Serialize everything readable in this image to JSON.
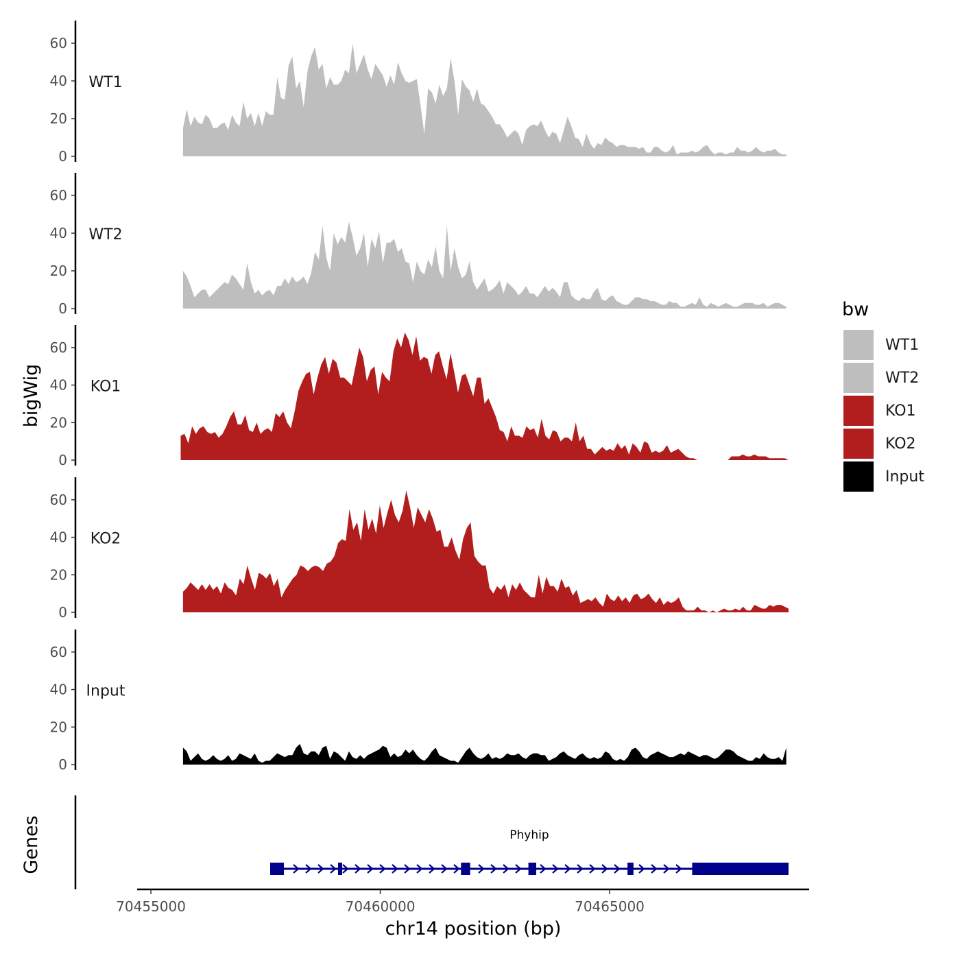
{
  "chart_data": {
    "type": "area",
    "ylabel": "bigWig",
    "xlabel": "chr14 position (bp)",
    "xlim": [
      70454700,
      70469350
    ],
    "x_ticks": [
      70455000,
      70460000,
      70465000
    ],
    "x_tick_labels": [
      "70455000",
      "70460000",
      "70465000"
    ],
    "ylim": [
      0,
      72
    ],
    "y_ticks": [
      0,
      20,
      40,
      60
    ],
    "y_tick_labels": [
      "0",
      "20",
      "40",
      "60"
    ],
    "legend": {
      "title": "bw",
      "entries": [
        {
          "label": "WT1",
          "color": "#bebebe"
        },
        {
          "label": "WT2",
          "color": "#bebebe"
        },
        {
          "label": "KO1",
          "color": "#b21e1e"
        },
        {
          "label": "KO2",
          "color": "#b21e1e"
        },
        {
          "label": "Input",
          "color": "#000000"
        }
      ]
    },
    "series": [
      {
        "name": "WT1",
        "color": "#bebebe",
        "x_start": 70455700,
        "x_end": 70468850,
        "values": [
          15,
          25,
          16,
          21,
          18,
          17,
          22,
          20,
          15,
          15,
          17,
          18,
          14,
          22,
          18,
          16,
          29,
          20,
          23,
          16,
          23,
          16,
          24,
          22,
          22,
          42,
          31,
          30,
          48,
          53,
          36,
          40,
          26,
          45,
          53,
          58,
          46,
          49,
          36,
          42,
          38,
          38,
          40,
          46,
          44,
          60,
          44,
          49,
          54,
          46,
          41,
          49,
          46,
          43,
          37,
          43,
          38,
          50,
          44,
          40,
          39,
          40,
          41,
          27,
          12,
          36,
          34,
          28,
          38,
          32,
          36,
          52,
          40,
          22,
          41,
          37,
          35,
          29,
          36,
          28,
          27,
          24,
          21,
          17,
          17,
          14,
          10,
          12,
          14,
          12,
          6,
          14,
          16,
          17,
          16,
          19,
          14,
          10,
          13,
          12,
          7,
          14,
          21,
          16,
          10,
          9,
          5,
          12,
          7,
          4,
          7,
          6,
          10,
          8,
          7,
          5,
          6,
          6,
          5,
          5,
          5,
          4,
          5,
          2,
          2,
          5,
          5,
          3,
          2,
          3,
          6,
          1,
          2,
          2,
          2,
          3,
          2,
          3,
          5,
          6,
          3,
          1,
          2,
          2,
          1,
          2,
          2,
          5,
          3,
          3,
          2,
          3,
          5,
          3,
          2,
          3,
          3,
          4,
          2,
          1,
          1
        ]
      },
      {
        "name": "WT2",
        "color": "#bebebe",
        "x_start": 70455700,
        "x_end": 70468850,
        "values": [
          20,
          17,
          12,
          6,
          8,
          10,
          10,
          6,
          8,
          10,
          12,
          14,
          13,
          18,
          16,
          13,
          10,
          24,
          14,
          8,
          10,
          7,
          9,
          10,
          7,
          12,
          12,
          16,
          13,
          17,
          14,
          15,
          17,
          13,
          19,
          30,
          26,
          44,
          27,
          20,
          40,
          34,
          38,
          35,
          46,
          38,
          28,
          32,
          40,
          22,
          37,
          32,
          41,
          24,
          35,
          35,
          37,
          30,
          32,
          25,
          24,
          14,
          25,
          20,
          18,
          26,
          22,
          33,
          20,
          16,
          44,
          20,
          32,
          22,
          16,
          18,
          25,
          14,
          10,
          13,
          16,
          9,
          10,
          12,
          15,
          8,
          14,
          12,
          10,
          7,
          9,
          12,
          8,
          8,
          6,
          9,
          12,
          9,
          11,
          9,
          6,
          14,
          14,
          7,
          5,
          4,
          6,
          5,
          5,
          9,
          11,
          5,
          4,
          6,
          7,
          4,
          3,
          2,
          2,
          4,
          6,
          6,
          5,
          5,
          4,
          4,
          3,
          2,
          2,
          4,
          3,
          3,
          1,
          1,
          2,
          3,
          2,
          6,
          2,
          1,
          3,
          2,
          1,
          2,
          3,
          2,
          1,
          1,
          2,
          3,
          3,
          3,
          2,
          2,
          3,
          1,
          2,
          3,
          3,
          2,
          1
        ]
      },
      {
        "name": "KO1",
        "color": "#b21e1e",
        "x_start": 70455650,
        "x_end": 70468900,
        "values": [
          13,
          14,
          9,
          18,
          14,
          17,
          18,
          15,
          14,
          15,
          12,
          14,
          18,
          23,
          26,
          19,
          19,
          24,
          16,
          15,
          20,
          14,
          16,
          17,
          15,
          25,
          23,
          26,
          20,
          17,
          26,
          37,
          42,
          46,
          47,
          35,
          44,
          51,
          55,
          46,
          54,
          52,
          44,
          44,
          42,
          40,
          50,
          60,
          55,
          42,
          48,
          50,
          35,
          47,
          44,
          42,
          58,
          65,
          60,
          68,
          64,
          56,
          66,
          53,
          55,
          54,
          46,
          56,
          58,
          50,
          43,
          57,
          47,
          36,
          45,
          46,
          40,
          34,
          44,
          44,
          30,
          33,
          28,
          23,
          16,
          15,
          10,
          18,
          13,
          13,
          12,
          18,
          16,
          17,
          12,
          22,
          13,
          11,
          16,
          15,
          10,
          12,
          12,
          10,
          20,
          10,
          13,
          6,
          6,
          3,
          5,
          7,
          5,
          6,
          5,
          9,
          6,
          8,
          3,
          9,
          7,
          4,
          10,
          9,
          4,
          5,
          4,
          5,
          8,
          4,
          5,
          6,
          4,
          2,
          1,
          1,
          0,
          0,
          0,
          0,
          0,
          0,
          0,
          0,
          0,
          2,
          2,
          2,
          3,
          2,
          2,
          3,
          2,
          2,
          2,
          1,
          1,
          1,
          1,
          1,
          0
        ]
      },
      {
        "name": "KO2",
        "color": "#b21e1e",
        "x_start": 70455700,
        "x_end": 70468900,
        "values": [
          11,
          13,
          16,
          14,
          12,
          15,
          12,
          15,
          12,
          14,
          10,
          16,
          13,
          12,
          9,
          18,
          15,
          25,
          18,
          12,
          21,
          20,
          18,
          21,
          14,
          18,
          8,
          12,
          15,
          18,
          20,
          25,
          24,
          22,
          24,
          25,
          24,
          22,
          26,
          27,
          30,
          37,
          39,
          38,
          55,
          44,
          48,
          38,
          55,
          44,
          50,
          42,
          57,
          45,
          53,
          60,
          52,
          48,
          54,
          65,
          56,
          45,
          56,
          52,
          48,
          55,
          50,
          43,
          44,
          35,
          35,
          40,
          33,
          28,
          39,
          45,
          48,
          30,
          27,
          25,
          25,
          13,
          10,
          14,
          12,
          15,
          8,
          15,
          12,
          16,
          12,
          10,
          8,
          8,
          20,
          10,
          19,
          14,
          14,
          11,
          18,
          13,
          14,
          9,
          12,
          5,
          6,
          7,
          6,
          8,
          5,
          3,
          10,
          7,
          6,
          9,
          6,
          8,
          5,
          9,
          10,
          7,
          8,
          10,
          7,
          5,
          8,
          4,
          6,
          5,
          6,
          8,
          3,
          1,
          1,
          1,
          3,
          1,
          1,
          0,
          1,
          0,
          1,
          2,
          1,
          1,
          2,
          1,
          3,
          1,
          1,
          4,
          3,
          2,
          2,
          4,
          3,
          4,
          4,
          3,
          2
        ]
      },
      {
        "name": "Input",
        "color": "#000000",
        "x_start": 70455700,
        "x_end": 70468850,
        "values": [
          9,
          7,
          2,
          4,
          6,
          3,
          2,
          3,
          5,
          3,
          2,
          3,
          5,
          2,
          3,
          6,
          5,
          4,
          3,
          6,
          2,
          1,
          2,
          2,
          4,
          6,
          5,
          4,
          5,
          5,
          9,
          11,
          6,
          5,
          7,
          7,
          5,
          9,
          10,
          3,
          7,
          6,
          4,
          2,
          7,
          4,
          3,
          5,
          3,
          5,
          6,
          7,
          8,
          10,
          9,
          4,
          6,
          4,
          5,
          8,
          6,
          8,
          5,
          3,
          2,
          4,
          7,
          9,
          5,
          4,
          3,
          2,
          2,
          1,
          4,
          7,
          9,
          6,
          4,
          3,
          4,
          6,
          3,
          4,
          3,
          4,
          6,
          5,
          5,
          6,
          4,
          3,
          5,
          6,
          6,
          5,
          5,
          2,
          3,
          4,
          6,
          7,
          5,
          4,
          3,
          5,
          6,
          4,
          3,
          4,
          3,
          4,
          7,
          6,
          3,
          2,
          3,
          2,
          4,
          8,
          9,
          7,
          4,
          3,
          5,
          6,
          7,
          6,
          5,
          4,
          4,
          5,
          6,
          5,
          7,
          6,
          5,
          4,
          5,
          5,
          4,
          3,
          4,
          6,
          8,
          8,
          7,
          5,
          4,
          3,
          2,
          2,
          4,
          3,
          6,
          4,
          3,
          3,
          4,
          2,
          9
        ]
      }
    ],
    "genes": {
      "ylabel": "Genes",
      "name": "Phyhip",
      "strand": "+",
      "color": "#00008b",
      "start": 70457600,
      "end": 70468900,
      "exons": [
        [
          70457600,
          70457900
        ],
        [
          70459080,
          70459160
        ],
        [
          70461760,
          70461960
        ],
        [
          70463230,
          70463400
        ],
        [
          70465390,
          70465520
        ],
        [
          70466800,
          70468900
        ]
      ]
    }
  }
}
